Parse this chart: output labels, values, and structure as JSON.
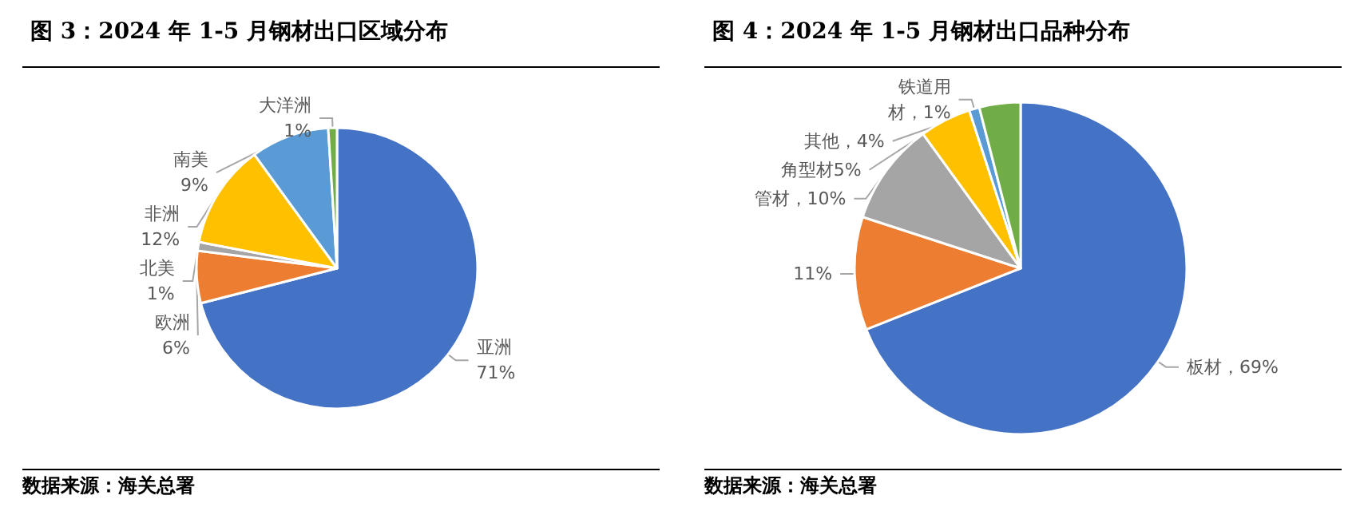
{
  "chart_data": [
    {
      "type": "pie",
      "title": "图 3：2024 年 1-5 月钢材出口区域分布",
      "categories": [
        "亚洲",
        "欧洲",
        "北美",
        "非洲",
        "南美",
        "大洋洲"
      ],
      "values": [
        71,
        6,
        1,
        12,
        9,
        1
      ],
      "colors": [
        "#4472c4",
        "#ed7d31",
        "#a5a5a5",
        "#ffc000",
        "#5b9bd5",
        "#70ad47"
      ],
      "value_labels": [
        "71%",
        "6%",
        "1%",
        "12%",
        "9%",
        "1%"
      ],
      "annotations": [
        "数据来源：海关总署"
      ]
    },
    {
      "type": "pie",
      "title": "图 4：2024 年 1-5 月钢材出口品种分布",
      "categories": [
        "板材",
        null,
        "管材",
        "角型材",
        "铁道用材",
        "其他"
      ],
      "values": [
        69,
        11,
        10,
        5,
        1,
        4
      ],
      "colors": [
        "#4472c4",
        "#ed7d31",
        "#a5a5a5",
        "#ffc000",
        "#5b9bd5",
        "#70ad47"
      ],
      "value_labels": [
        "，69%",
        "11%",
        "，10%",
        "5%",
        "，1%",
        "，4%"
      ],
      "annotations": [
        "数据来源：海关总署"
      ]
    }
  ]
}
